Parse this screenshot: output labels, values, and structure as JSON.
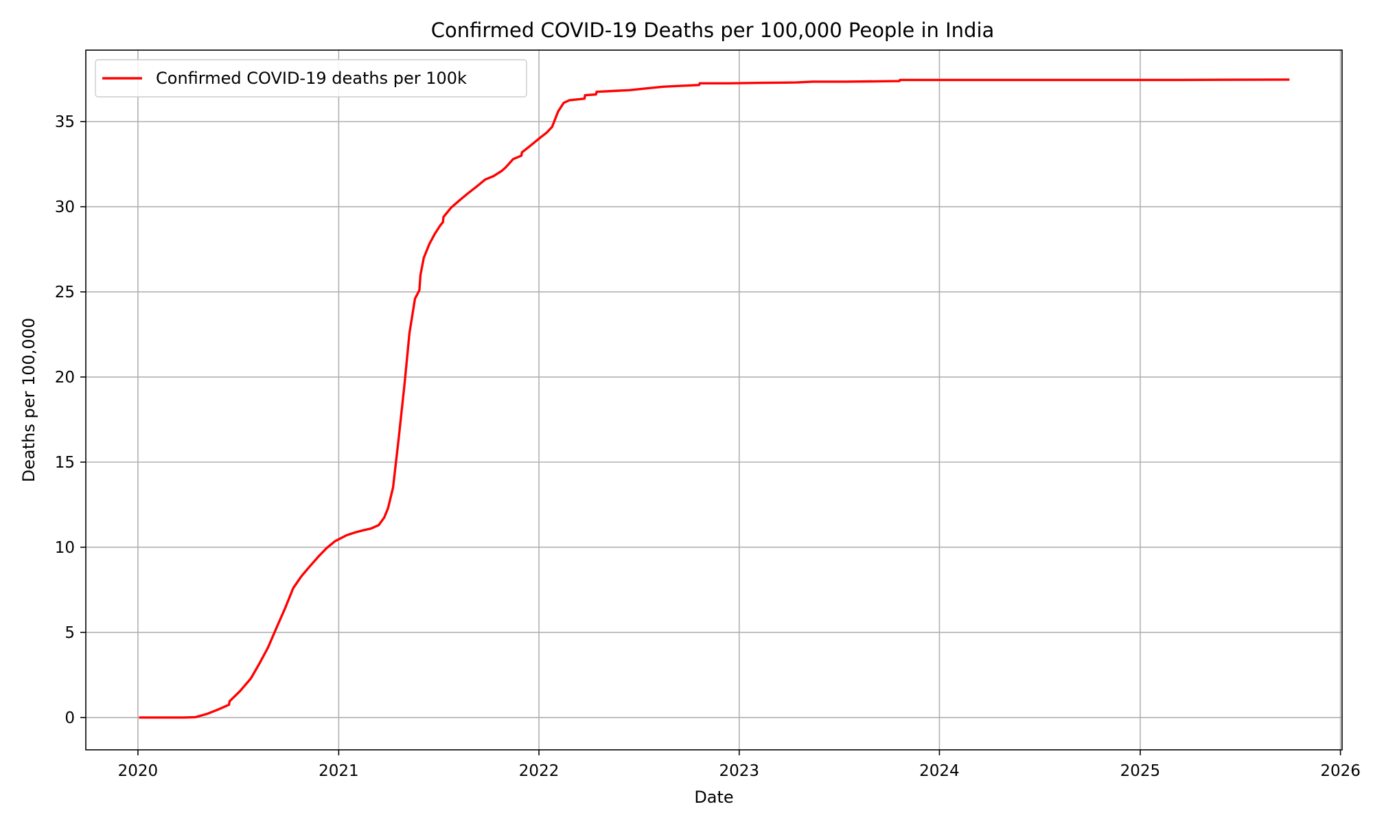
{
  "chart_data": {
    "type": "line",
    "title": "Confirmed COVID-19 Deaths per 100,000 People in India",
    "xlabel": "Date",
    "ylabel": "Deaths per 100,000",
    "xlim": [
      "2019-09-28",
      "2026-01-04"
    ],
    "ylim": [
      -1.9,
      39.2
    ],
    "grid": true,
    "legend_position": "top-left",
    "x_ticks": [
      "2020",
      "2021",
      "2022",
      "2023",
      "2024",
      "2025",
      "2026"
    ],
    "x_tick_dates": [
      "2020-01-01",
      "2021-01-01",
      "2022-01-01",
      "2023-01-01",
      "2024-01-01",
      "2025-01-01",
      "2026-01-01"
    ],
    "y_ticks": [
      0,
      5,
      10,
      15,
      20,
      25,
      30,
      35
    ],
    "series": [
      {
        "name": "Confirmed COVID-19 deaths per 100k",
        "color": "#ff0000",
        "x": [
          "2020-01-03",
          "2020-02-15",
          "2020-03-25",
          "2020-04-15",
          "2020-05-05",
          "2020-05-25",
          "2020-06-15",
          "2020-06-16",
          "2020-07-05",
          "2020-07-25",
          "2020-08-10",
          "2020-08-25",
          "2020-09-10",
          "2020-09-25",
          "2020-10-10",
          "2020-10-25",
          "2020-11-10",
          "2020-11-25",
          "2020-12-10",
          "2020-12-25",
          "2021-01-15",
          "2021-02-01",
          "2021-02-15",
          "2021-03-01",
          "2021-03-15",
          "2021-03-25",
          "2021-04-01",
          "2021-04-10",
          "2021-04-20",
          "2021-05-01",
          "2021-05-10",
          "2021-05-20",
          "2021-05-28",
          "2021-05-30",
          "2021-06-05",
          "2021-06-15",
          "2021-06-25",
          "2021-07-05",
          "2021-07-10",
          "2021-07-11",
          "2021-07-25",
          "2021-08-10",
          "2021-08-25",
          "2021-09-10",
          "2021-09-25",
          "2021-10-10",
          "2021-10-25",
          "2021-11-01",
          "2021-11-15",
          "2021-11-30",
          "2021-12-01",
          "2021-12-15",
          "2022-01-01",
          "2022-01-15",
          "2022-01-25",
          "2022-02-05",
          "2022-02-15",
          "2022-02-25",
          "2022-03-10",
          "2022-03-25",
          "2022-03-26",
          "2022-04-15",
          "2022-04-16",
          "2022-05-15",
          "2022-06-15",
          "2022-07-15",
          "2022-08-15",
          "2022-09-15",
          "2022-10-20",
          "2022-10-21",
          "2022-12-15",
          "2023-02-15",
          "2023-04-15",
          "2023-05-15",
          "2023-07-15",
          "2023-10-20",
          "2023-10-21",
          "2024-03-15",
          "2024-09-15",
          "2025-03-15",
          "2025-09-30"
        ],
        "y": [
          0,
          0,
          0,
          0.02,
          0.2,
          0.45,
          0.75,
          0.95,
          1.55,
          2.3,
          3.2,
          4.1,
          5.3,
          6.4,
          7.6,
          8.3,
          8.9,
          9.45,
          9.95,
          10.35,
          10.7,
          10.88,
          11.0,
          11.1,
          11.3,
          11.75,
          12.3,
          13.5,
          16.3,
          19.6,
          22.6,
          24.6,
          25.1,
          26.0,
          27.0,
          27.8,
          28.4,
          28.9,
          29.1,
          29.4,
          29.95,
          30.4,
          30.8,
          31.2,
          31.6,
          31.8,
          32.1,
          32.3,
          32.8,
          33.0,
          33.2,
          33.55,
          34.0,
          34.35,
          34.7,
          35.6,
          36.1,
          36.25,
          36.3,
          36.35,
          36.55,
          36.6,
          36.75,
          36.8,
          36.85,
          36.95,
          37.05,
          37.1,
          37.15,
          37.25,
          37.25,
          37.28,
          37.3,
          37.35,
          37.35,
          37.38,
          37.45,
          37.45,
          37.45,
          37.45,
          37.47
        ]
      }
    ]
  }
}
